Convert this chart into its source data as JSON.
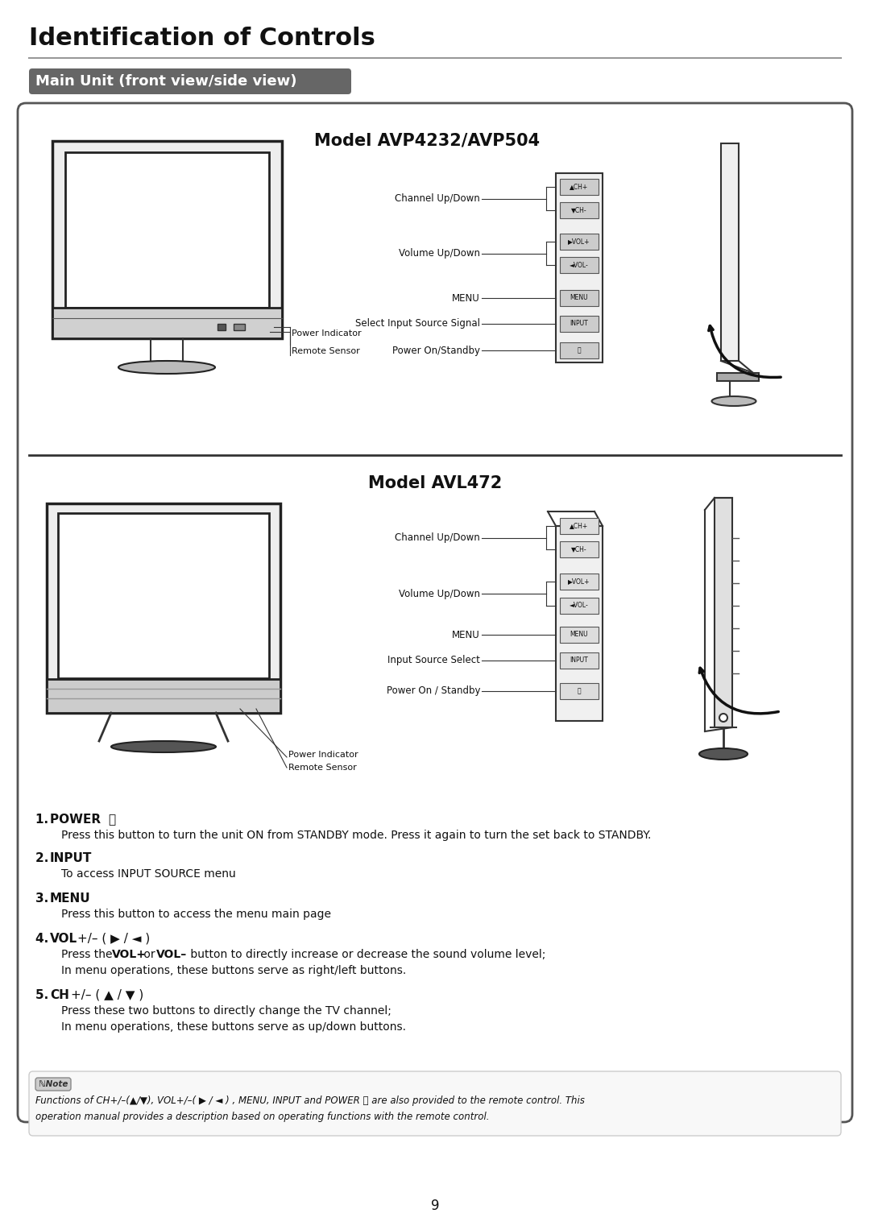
{
  "title": "Identification of Controls",
  "subtitle": "Main Unit (front view/side view)",
  "page_number": "9",
  "model1": "Model AVP4232/AVP504",
  "model2": "Model AVL472",
  "model1_labels": {
    "channel": "Channel Up/Down",
    "volume": "Volume Up/Down",
    "menu": "MENU",
    "input": "Select Input Source Signal",
    "power": "Power On/Standby"
  },
  "model1_front_labels": {
    "power_ind": "Power Indicator",
    "remote": "Remote Sensor"
  },
  "model2_labels": {
    "channel": "Channel Up/Down",
    "volume": "Volume Up/Down",
    "menu": "MENU",
    "input": "Input Source Select",
    "power": "Power On / Standby"
  },
  "model2_front_labels": {
    "power_ind": "Power Indicator",
    "remote": "Remote Sensor"
  },
  "bg_color": "#ffffff",
  "text_color": "#1a1a1a"
}
